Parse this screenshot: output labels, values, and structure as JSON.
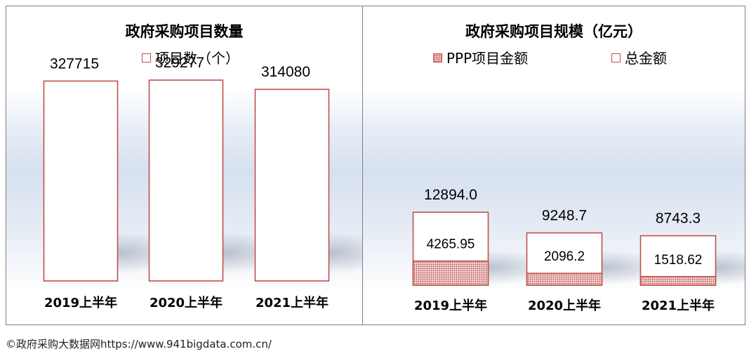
{
  "colors": {
    "bar_border": "#c0504d",
    "frame": "#7f7f7f",
    "dot": "#b3413e"
  },
  "chart_data": [
    {
      "type": "bar",
      "title": "政府采购项目数量",
      "legend": [
        "项目数（个）"
      ],
      "categories": [
        "2019上半年",
        "2020上半年",
        "2021上半年"
      ],
      "series": [
        {
          "name": "项目数（个）",
          "values": [
            327715,
            329277,
            314080
          ]
        }
      ],
      "value_labels": [
        "327715",
        "329277",
        "314080"
      ],
      "ylim": [
        0,
        380000
      ]
    },
    {
      "type": "bar",
      "title": "政府采购项目规模（亿元）",
      "legend": [
        "PPP项目金额",
        "总金额"
      ],
      "categories": [
        "2019上半年",
        "2020上半年",
        "2021上半年"
      ],
      "series": [
        {
          "name": "PPP项目金额",
          "values": [
            4265.95,
            2096.2,
            1518.62
          ]
        },
        {
          "name": "总金额",
          "values": [
            12894.0,
            9248.7,
            8743.3
          ]
        }
      ],
      "value_labels_ppp": [
        "4265.95",
        "2096.2",
        "1518.62"
      ],
      "value_labels_total": [
        "12894.0",
        "9248.7",
        "8743.3"
      ],
      "ylim": [
        0,
        41000
      ]
    }
  ],
  "footer": "©政府采购大数据网https://www.941bigdata.com.cn/"
}
